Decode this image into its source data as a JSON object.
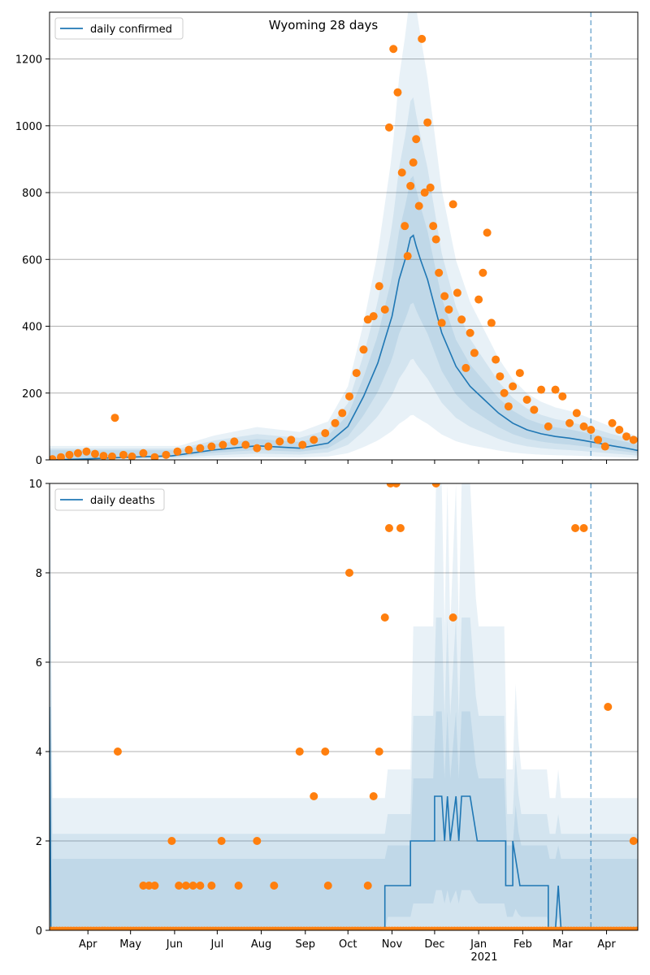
{
  "colors": {
    "line": "#1f77b4",
    "points": "#ff7f0e",
    "band": "#1f77b4",
    "grid": "#b0b0b0",
    "vline": "#1f77b4"
  },
  "x_axis": {
    "ticks": [
      {
        "label": "Apr",
        "day": 31
      },
      {
        "label": "May",
        "day": 61
      },
      {
        "label": "Jun",
        "day": 92
      },
      {
        "label": "Jul",
        "day": 122
      },
      {
        "label": "Aug",
        "day": 153
      },
      {
        "label": "Sep",
        "day": 184
      },
      {
        "label": "Oct",
        "day": 214
      },
      {
        "label": "Nov",
        "day": 245
      },
      {
        "label": "Dec",
        "day": 275
      },
      {
        "label": "Jan",
        "day": 306
      },
      {
        "label": "Feb",
        "day": 337
      },
      {
        "label": "Mar",
        "day": 365
      },
      {
        "label": "Apr",
        "day": 396
      }
    ],
    "year_label": "2021",
    "range_days": [
      4,
      418
    ]
  },
  "chart_data": [
    {
      "type": "line",
      "title": "Wyoming 28 days",
      "legend": "daily confirmed",
      "legend_position": "top-left",
      "ylim": [
        0,
        1340
      ],
      "yticks": [
        0,
        200,
        400,
        600,
        800,
        1000,
        1200
      ],
      "grid": true,
      "vline_day": 385,
      "series": [
        {
          "name": "daily confirmed",
          "x": [
            4,
            30,
            60,
            90,
            120,
            150,
            180,
            200,
            214,
            225,
            235,
            240,
            245,
            250,
            255,
            258,
            260,
            262,
            265,
            270,
            275,
            280,
            290,
            300,
            310,
            320,
            330,
            340,
            350,
            360,
            370,
            380,
            390,
            400,
            410,
            418
          ],
          "values": [
            0,
            3,
            8,
            12,
            30,
            42,
            35,
            50,
            100,
            190,
            290,
            360,
            430,
            540,
            610,
            665,
            672,
            640,
            600,
            540,
            460,
            380,
            280,
            220,
            180,
            140,
            110,
            90,
            78,
            70,
            65,
            58,
            50,
            42,
            35,
            28
          ]
        }
      ],
      "points": {
        "x": [
          6,
          12,
          18,
          24,
          30,
          36,
          42,
          48,
          50,
          56,
          62,
          70,
          78,
          86,
          94,
          102,
          110,
          118,
          126,
          134,
          142,
          150,
          158,
          166,
          174,
          182,
          190,
          198,
          205,
          210,
          215,
          220,
          225,
          228,
          232,
          236,
          240,
          243,
          246,
          249,
          252,
          254,
          256,
          258,
          260,
          262,
          264,
          266,
          268,
          270,
          272,
          274,
          276,
          278,
          280,
          282,
          285,
          288,
          291,
          294,
          297,
          300,
          303,
          306,
          309,
          312,
          315,
          318,
          321,
          324,
          327,
          330,
          335,
          340,
          345,
          350,
          355,
          360,
          365,
          370,
          375,
          380,
          385,
          390,
          395,
          400,
          405,
          410,
          415
        ],
        "y": [
          2,
          8,
          15,
          20,
          25,
          18,
          12,
          10,
          126,
          15,
          10,
          20,
          8,
          15,
          25,
          30,
          35,
          40,
          45,
          55,
          45,
          35,
          40,
          55,
          60,
          45,
          60,
          80,
          110,
          140,
          190,
          260,
          330,
          420,
          430,
          520,
          450,
          995,
          1230,
          1100,
          860,
          700,
          610,
          820,
          890,
          960,
          760,
          1260,
          800,
          1010,
          815,
          700,
          660,
          560,
          410,
          490,
          450,
          765,
          500,
          420,
          275,
          380,
          320,
          480,
          560,
          680,
          410,
          300,
          250,
          200,
          160,
          220,
          260,
          180,
          150,
          210,
          100,
          210,
          190,
          110,
          140,
          100,
          90,
          60,
          40,
          110,
          90,
          70,
          60
        ]
      }
    },
    {
      "type": "line",
      "legend": "daily deaths",
      "legend_position": "top-left",
      "ylim": [
        0,
        10
      ],
      "yticks": [
        0,
        2,
        4,
        6,
        8,
        10
      ],
      "grid": true,
      "vline_day": 385,
      "series": [
        {
          "name": "daily deaths",
          "x": [
            4,
            5,
            6,
            240,
            240,
            258,
            258,
            275,
            275,
            280,
            282,
            284,
            286,
            290,
            292,
            294,
            296,
            300,
            305,
            325,
            325,
            330,
            330,
            335,
            338,
            340,
            342,
            355,
            355,
            360,
            362,
            364,
            366,
            368,
            418
          ],
          "values": [
            5,
            0,
            0,
            0,
            1,
            1,
            2,
            2,
            3,
            3,
            2,
            3,
            2,
            3,
            2,
            3,
            3,
            3,
            2,
            2,
            1,
            1,
            2,
            1,
            1,
            1,
            1,
            1,
            0,
            0,
            1,
            0,
            0,
            0,
            0
          ]
        }
      ],
      "points": {
        "x": [
          52,
          70,
          74,
          78,
          90,
          95,
          100,
          105,
          110,
          118,
          125,
          137,
          150,
          162,
          180,
          190,
          198,
          200,
          215,
          228,
          232,
          236,
          240,
          243,
          244,
          248,
          251,
          276,
          288,
          374,
          380,
          397,
          415
        ],
        "y": [
          4,
          1,
          1,
          1,
          2,
          1,
          1,
          1,
          1,
          1,
          2,
          1,
          2,
          1,
          4,
          3,
          4,
          1,
          8,
          1,
          3,
          4,
          7,
          9,
          10,
          10,
          9,
          10,
          7,
          9,
          9,
          5,
          2
        ]
      }
    }
  ]
}
